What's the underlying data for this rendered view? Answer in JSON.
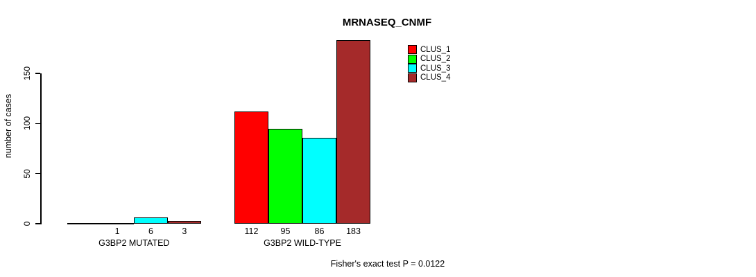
{
  "title": "MRNASEQ_CNMF",
  "y_axis": {
    "label": "number of cases",
    "ticks": [
      0,
      50,
      100,
      150
    ]
  },
  "footer": "Fisher's exact test P = 0.0122",
  "legend": {
    "items": [
      {
        "label": "CLUS_1",
        "color": "#FF0000"
      },
      {
        "label": "CLUS_2",
        "color": "#00FF00"
      },
      {
        "label": "CLUS_3",
        "color": "#00FFFF"
      },
      {
        "label": "CLUS_4",
        "color": "#A52A2A"
      }
    ]
  },
  "chart_data": {
    "type": "bar",
    "title": "MRNASEQ_CNMF",
    "xlabel": "",
    "ylabel": "number of cases",
    "ylim": [
      0,
      150
    ],
    "yticks": [
      0,
      50,
      100,
      150
    ],
    "grid": false,
    "legend_position": "top-right",
    "series": [
      "CLUS_1",
      "CLUS_2",
      "CLUS_3",
      "CLUS_4"
    ],
    "series_colors": [
      "#FF0000",
      "#00FF00",
      "#00FFFF",
      "#A52A2A"
    ],
    "groups": [
      {
        "category": "G3BP2 MUTATED",
        "values": [
          0,
          1,
          6,
          3
        ],
        "value_labels": [
          "",
          "1",
          "6",
          "3"
        ]
      },
      {
        "category": "G3BP2 WILD-TYPE",
        "values": [
          112,
          95,
          86,
          183
        ],
        "value_labels": [
          "112",
          "95",
          "86",
          "183"
        ]
      }
    ],
    "annotation": "Fisher's exact test P = 0.0122"
  }
}
